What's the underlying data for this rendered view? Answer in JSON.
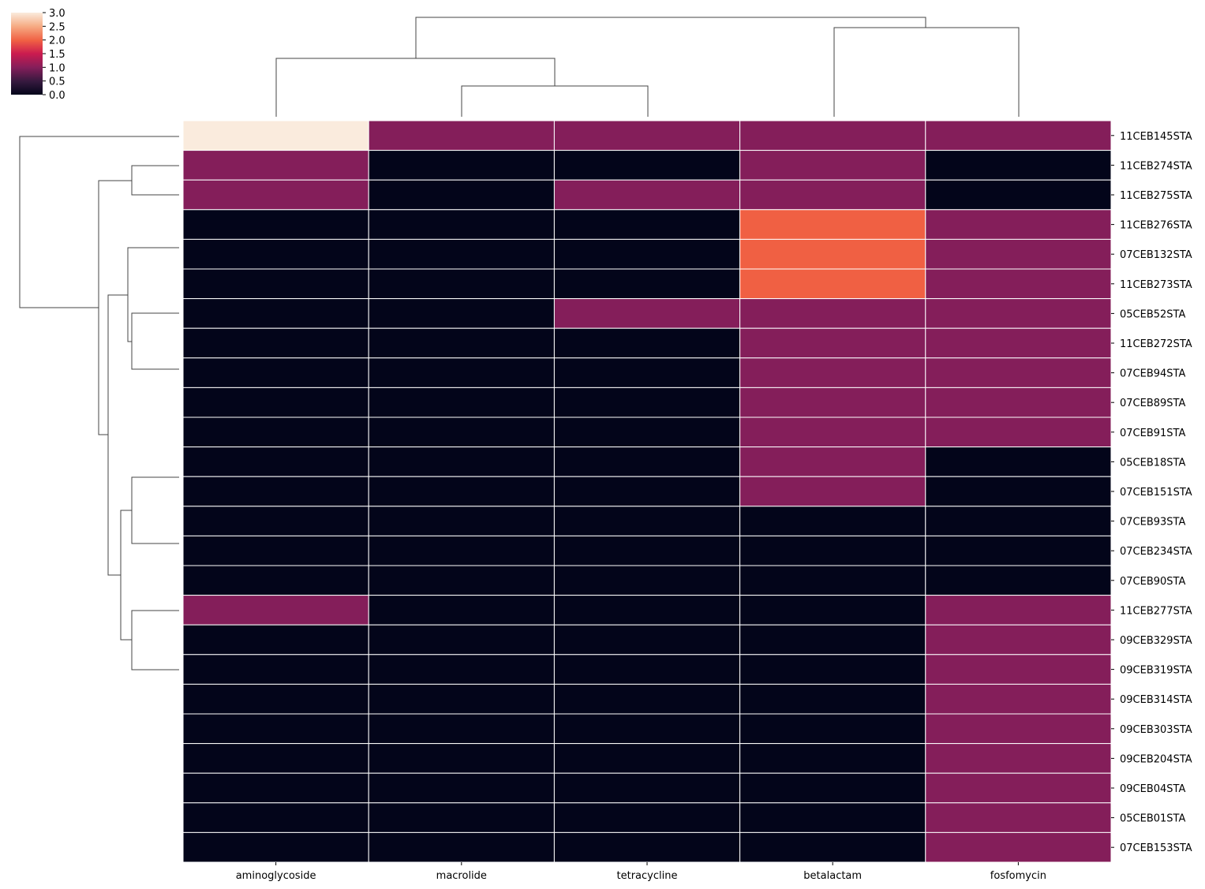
{
  "chart_data": {
    "type": "heatmap",
    "title": "",
    "xlabel": "",
    "ylabel": "",
    "columns": [
      "aminoglycoside",
      "macrolide",
      "tetracycline",
      "betalactam",
      "fosfomycin"
    ],
    "rows": [
      "11CEB145STA",
      "11CEB274STA",
      "11CEB275STA",
      "11CEB276STA",
      "07CEB132STA",
      "11CEB273STA",
      "05CEB52STA",
      "11CEB272STA",
      "07CEB94STA",
      "07CEB89STA",
      "07CEB91STA",
      "05CEB18STA",
      "07CEB151STA",
      "07CEB93STA",
      "07CEB234STA",
      "07CEB90STA",
      "11CEB277STA",
      "09CEB329STA",
      "09CEB319STA",
      "09CEB314STA",
      "09CEB303STA",
      "09CEB204STA",
      "09CEB04STA",
      "05CEB01STA",
      "07CEB153STA"
    ],
    "values": [
      [
        3,
        1,
        1,
        1,
        1
      ],
      [
        1,
        0,
        0,
        1,
        0
      ],
      [
        1,
        0,
        1,
        1,
        0
      ],
      [
        0,
        0,
        0,
        2,
        1
      ],
      [
        0,
        0,
        0,
        2,
        1
      ],
      [
        0,
        0,
        0,
        2,
        1
      ],
      [
        0,
        0,
        1,
        1,
        1
      ],
      [
        0,
        0,
        0,
        1,
        1
      ],
      [
        0,
        0,
        0,
        1,
        1
      ],
      [
        0,
        0,
        0,
        1,
        1
      ],
      [
        0,
        0,
        0,
        1,
        1
      ],
      [
        0,
        0,
        0,
        1,
        0
      ],
      [
        0,
        0,
        0,
        1,
        0
      ],
      [
        0,
        0,
        0,
        0,
        0
      ],
      [
        0,
        0,
        0,
        0,
        0
      ],
      [
        0,
        0,
        0,
        0,
        0
      ],
      [
        1,
        0,
        0,
        0,
        1
      ],
      [
        0,
        0,
        0,
        0,
        1
      ],
      [
        0,
        0,
        0,
        0,
        1
      ],
      [
        0,
        0,
        0,
        0,
        1
      ],
      [
        0,
        0,
        0,
        0,
        1
      ],
      [
        0,
        0,
        0,
        0,
        1
      ],
      [
        0,
        0,
        0,
        0,
        1
      ],
      [
        0,
        0,
        0,
        0,
        1
      ],
      [
        0,
        0,
        0,
        0,
        1
      ]
    ],
    "colorbar": {
      "range": [
        0,
        3
      ],
      "ticks": [
        "0.0",
        "0.5",
        "1.0",
        "1.5",
        "2.0",
        "2.5",
        "3.0"
      ],
      "colormap": "rocket"
    },
    "value_colors": {
      "0": "#03051a",
      "1": "#841e5a",
      "2": "#f06043",
      "3": "#faebdd"
    },
    "column_dendrogram": true,
    "row_dendrogram": true,
    "grid": false
  }
}
